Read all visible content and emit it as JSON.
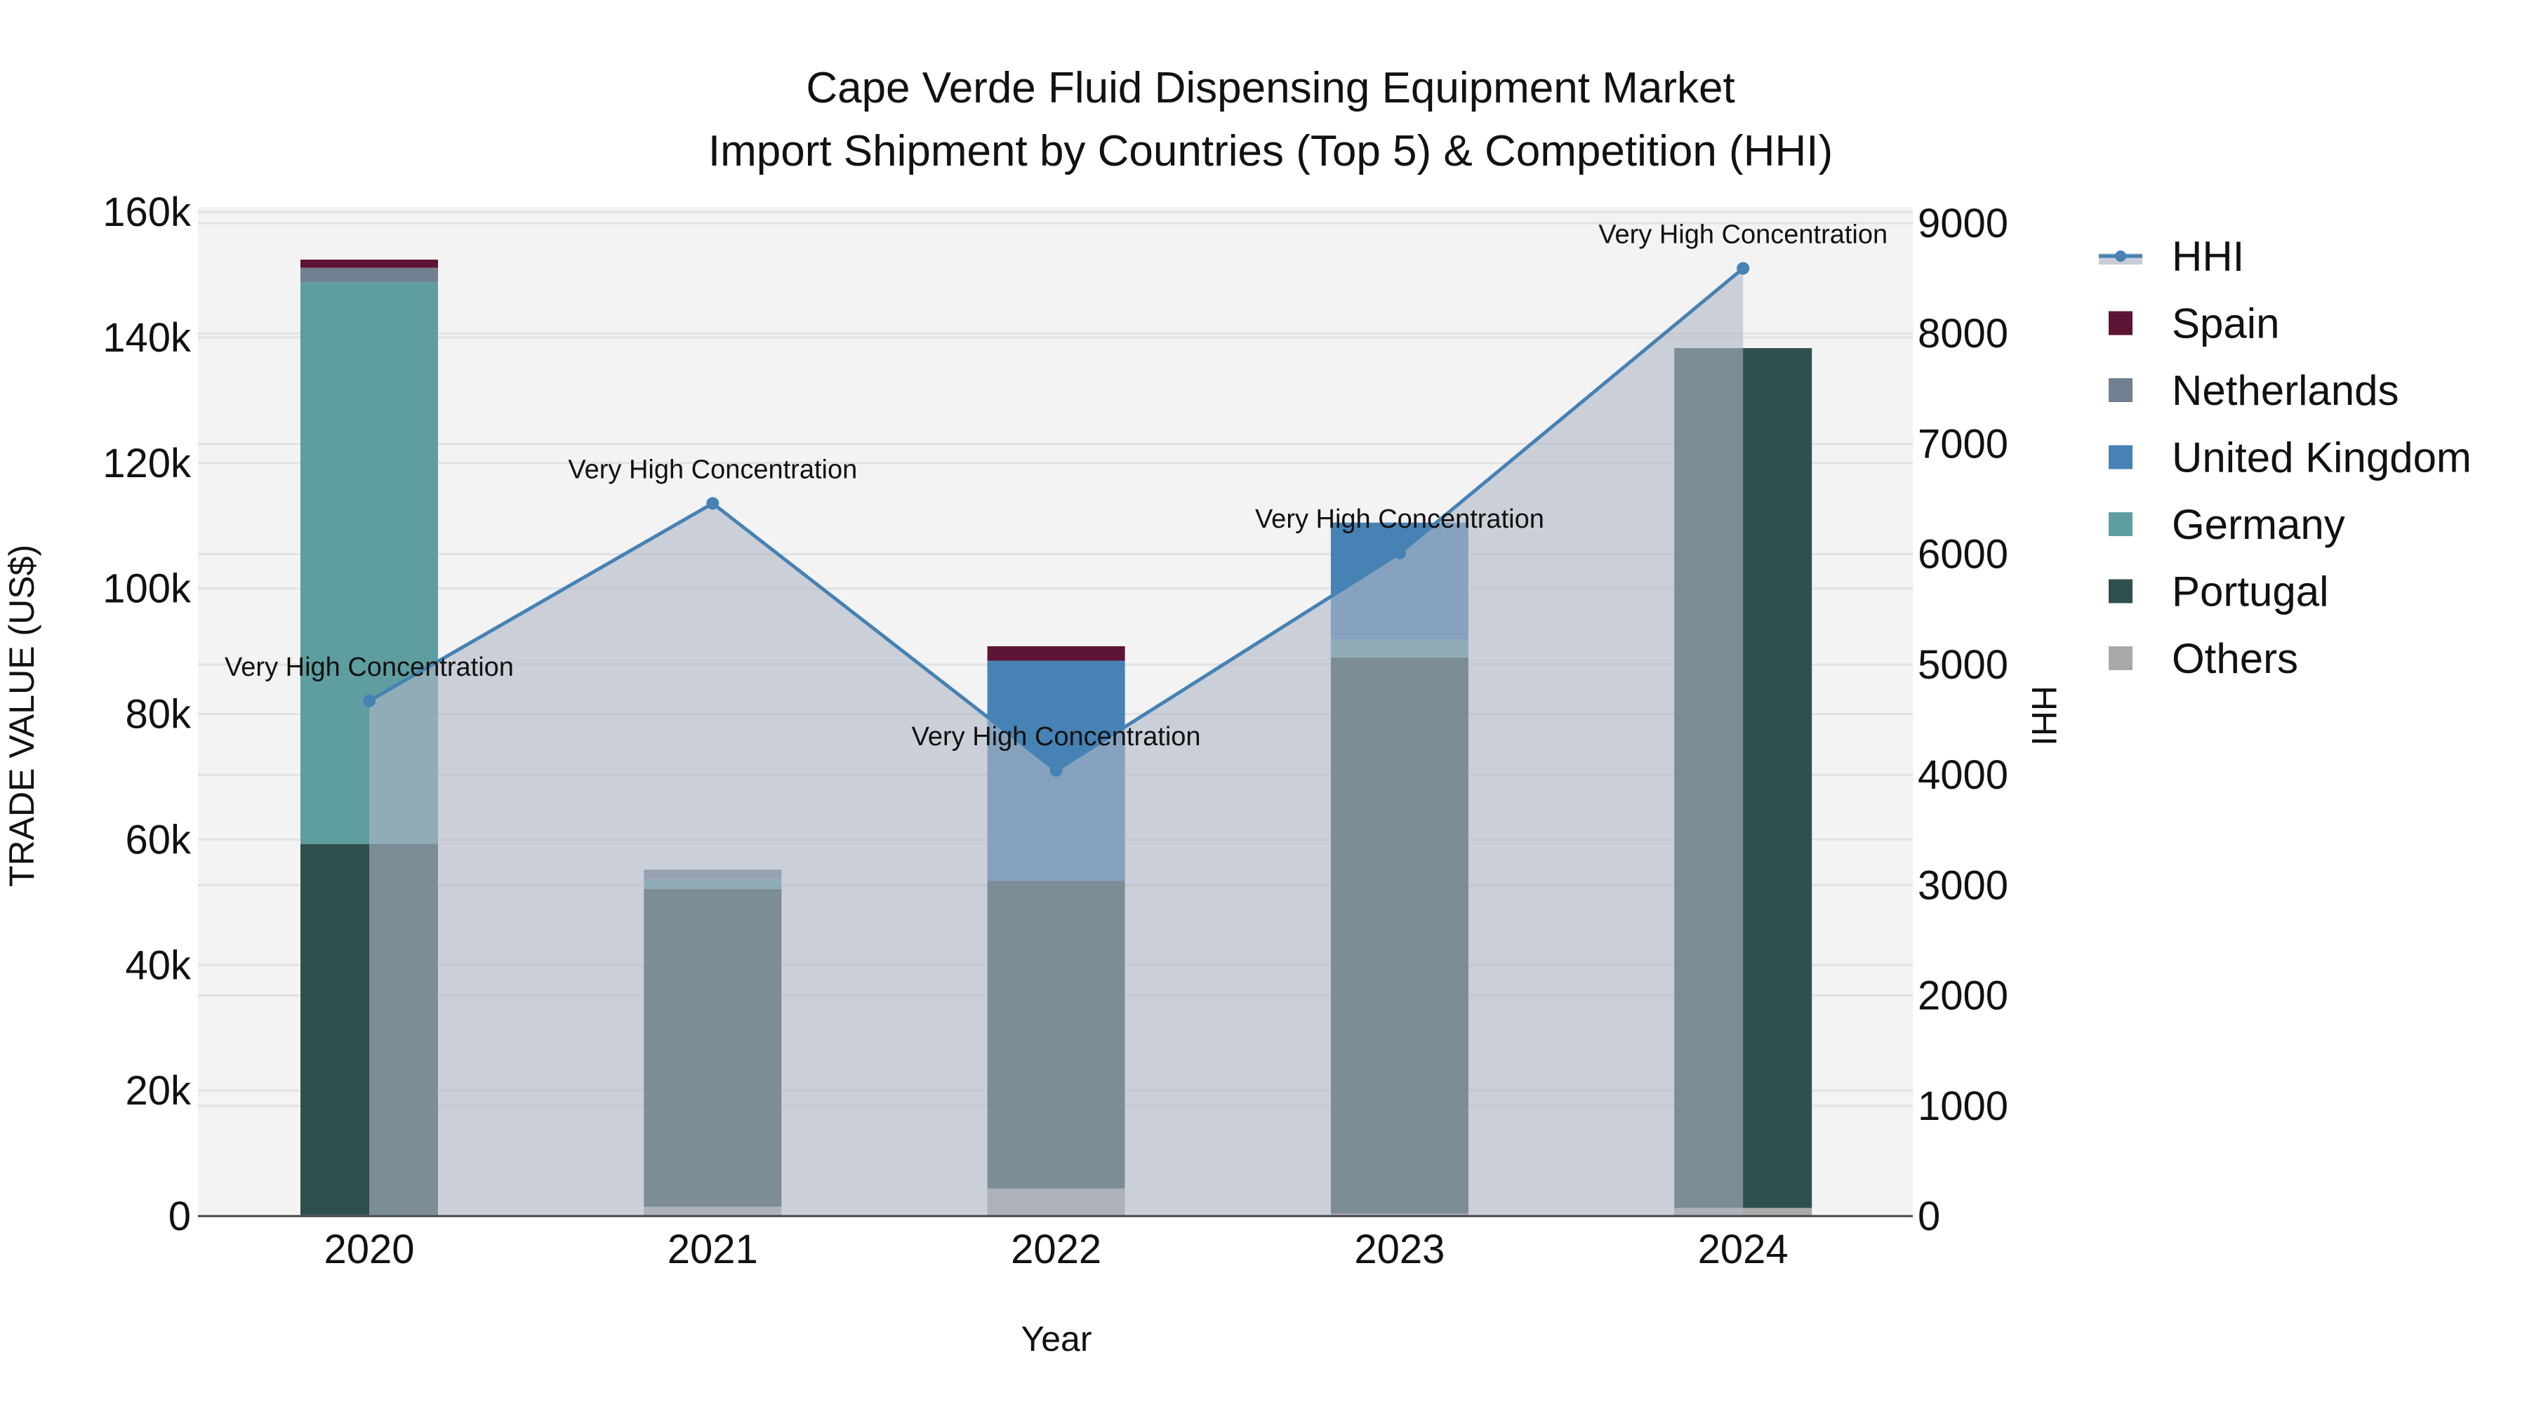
{
  "chart_data": {
    "type": "bar",
    "title": "Cape Verde Fluid Dispensing Equipment Market",
    "subtitle": "Import Shipment by Countries (Top 5) & Competition (HHI)",
    "xlabel": "Year",
    "ylabel": "TRADE VALUE (US$)",
    "y2label": "HHI",
    "categories": [
      "2020",
      "2021",
      "2022",
      "2023",
      "2024"
    ],
    "ylim": [
      0,
      160000
    ],
    "y_ticks": [
      0,
      20000,
      40000,
      60000,
      80000,
      100000,
      120000,
      140000,
      160000
    ],
    "y_tick_labels": [
      "0",
      "20k",
      "40k",
      "60k",
      "80k",
      "100k",
      "120k",
      "140k",
      "160k"
    ],
    "y2lim": [
      0,
      9000
    ],
    "y2_ticks": [
      0,
      1000,
      2000,
      3000,
      4000,
      5000,
      6000,
      7000,
      8000,
      9000
    ],
    "y2_tick_labels": [
      "0",
      "1000",
      "2000",
      "3000",
      "4000",
      "5000",
      "6000",
      "7000",
      "8000",
      "9000"
    ],
    "grid": true,
    "stacked": true,
    "legend_position": "right",
    "series": [
      {
        "name": "Others",
        "color": "#A9A9A9",
        "values": [
          200,
          1500,
          4400,
          400,
          1300
        ]
      },
      {
        "name": "Portugal",
        "color": "#2F4F4F",
        "values": [
          59100,
          50600,
          49000,
          88600,
          137000
        ]
      },
      {
        "name": "Germany",
        "color": "#5F9EA0",
        "values": [
          89500,
          1600,
          0,
          2900,
          0
        ]
      },
      {
        "name": "United Kingdom",
        "color": "#4682B4",
        "values": [
          0,
          0,
          35100,
          18600,
          0
        ]
      },
      {
        "name": "Netherlands",
        "color": "#708090",
        "values": [
          2300,
          1500,
          0,
          0,
          0
        ]
      },
      {
        "name": "Spain",
        "color": "#5E1434",
        "values": [
          1300,
          0,
          2300,
          0,
          0
        ]
      }
    ],
    "hhi": {
      "name": "HHI",
      "color": "#4682B4",
      "values": [
        4670,
        6460,
        4040,
        6010,
        8590
      ],
      "annotations": [
        "Very High Concentration",
        "Very High Concentration",
        "Very High Concentration",
        "Very High Concentration",
        "Very High Concentration"
      ]
    },
    "legend": [
      "HHI",
      "Spain",
      "Netherlands",
      "United Kingdom",
      "Germany",
      "Portugal",
      "Others"
    ]
  }
}
